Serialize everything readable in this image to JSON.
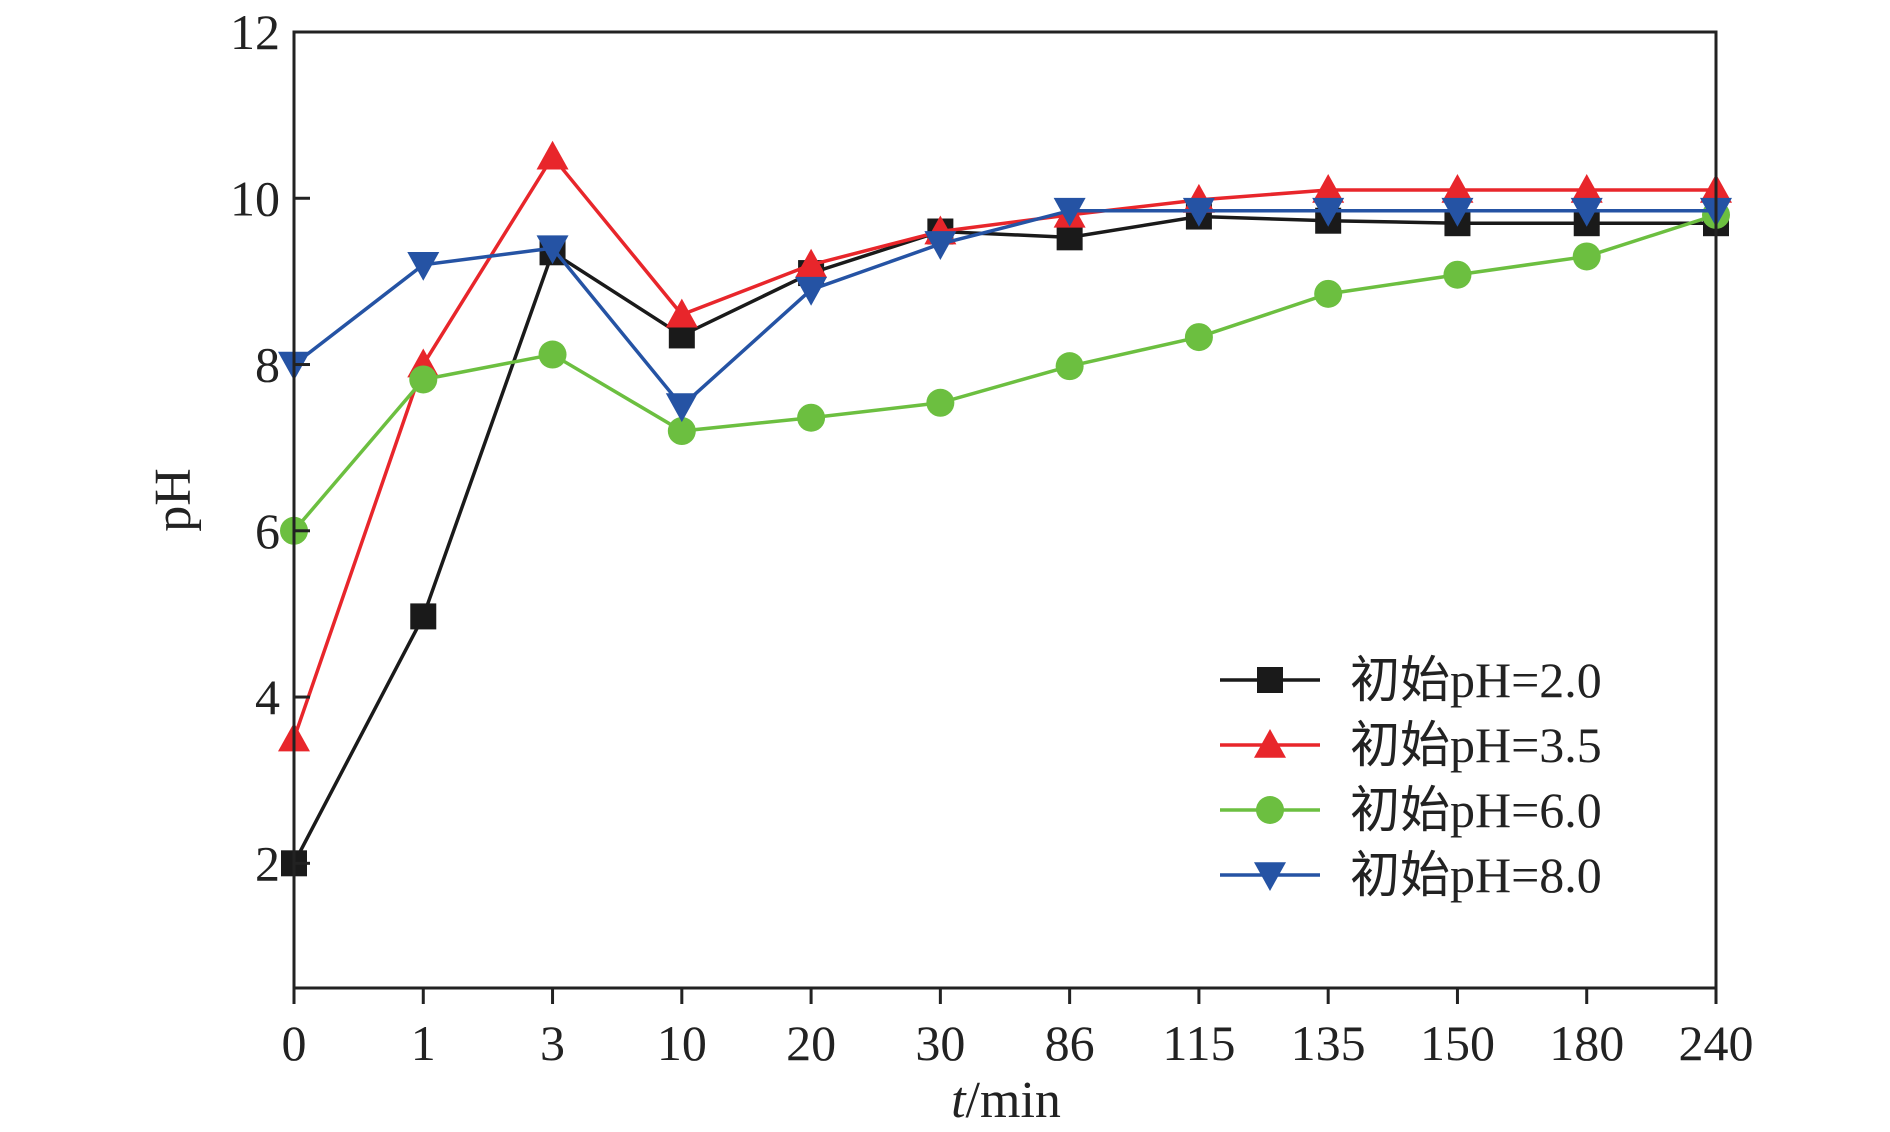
{
  "chart_data": {
    "type": "line",
    "title": "",
    "xlabel_italic": "t",
    "xlabel_rest": "/min",
    "ylabel": "pH",
    "categories": [
      "0",
      "1",
      "3",
      "10",
      "20",
      "30",
      "86",
      "115",
      "135",
      "150",
      "180",
      "240"
    ],
    "ylim": [
      0.5,
      12
    ],
    "yticks": [
      "2",
      "4",
      "6",
      "8",
      "10",
      "12"
    ],
    "grid": false,
    "legend_position": "lower-right",
    "series": [
      {
        "name": "初始pH=2.0",
        "color": "#1a1a1a",
        "marker": "square",
        "values": [
          2.0,
          4.97,
          9.35,
          8.35,
          9.1,
          9.6,
          9.53,
          9.78,
          9.73,
          9.7,
          9.7,
          9.7
        ]
      },
      {
        "name": "初始pH=3.5",
        "color": "#e8262b",
        "marker": "triangle-up",
        "values": [
          3.5,
          8.0,
          10.5,
          8.6,
          9.2,
          9.6,
          9.8,
          9.98,
          10.1,
          10.1,
          10.1,
          10.1
        ]
      },
      {
        "name": "初始pH=6.0",
        "color": "#6cbf40",
        "marker": "circle",
        "values": [
          6.0,
          7.82,
          8.12,
          7.2,
          7.36,
          7.54,
          7.98,
          8.33,
          8.85,
          9.08,
          9.3,
          9.8
        ]
      },
      {
        "name": "初始pH=8.0",
        "color": "#2553a4",
        "marker": "triangle-down",
        "values": [
          8.0,
          9.2,
          9.4,
          7.5,
          8.9,
          9.45,
          9.85,
          9.85,
          9.85,
          9.85,
          9.85,
          9.85
        ]
      }
    ]
  }
}
